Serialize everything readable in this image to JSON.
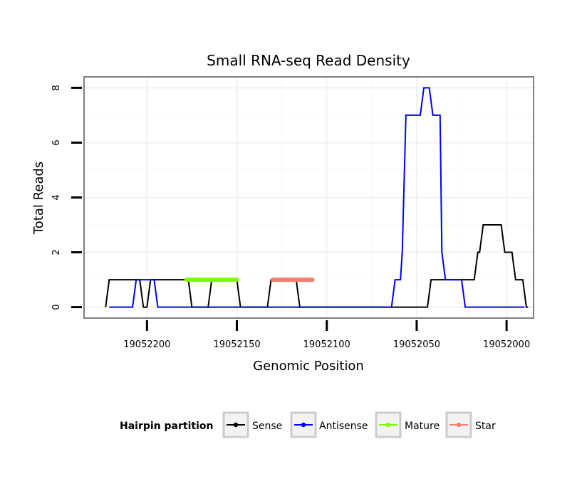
{
  "chart_data": {
    "type": "line",
    "title": "Small RNA-seq Read Density",
    "xlabel": "Genomic Position",
    "ylabel": "Total Reads",
    "x_reversed": true,
    "xlim": [
      19052235,
      19051985
    ],
    "ylim": [
      -0.4,
      8.4
    ],
    "x_ticks": [
      19052200,
      19052150,
      19052100,
      19052050,
      19052000
    ],
    "x_tick_labels": [
      "19052200",
      "19052150",
      "19052100",
      "19052050",
      "19052000"
    ],
    "y_ticks": [
      0,
      2,
      4,
      6,
      8
    ],
    "y_tick_labels": [
      "0",
      "2",
      "4",
      "6",
      "8"
    ],
    "legend": {
      "title": "Hairpin partition",
      "position": "bottom",
      "entries": [
        {
          "name": "Sense",
          "color": "#000000"
        },
        {
          "name": "Antisense",
          "color": "#0000ff"
        },
        {
          "name": "Mature",
          "color": "#7cfc00"
        },
        {
          "name": "Star",
          "color": "#f08070"
        }
      ]
    },
    "series": [
      {
        "name": "Sense",
        "color": "#000000",
        "x": [
          19052223,
          19052221,
          19052204,
          19052202,
          19052200,
          19052198,
          19052196,
          19052194,
          19052177,
          19052175,
          19052166,
          19052164,
          19052150,
          19052148,
          19052133,
          19052131,
          19052117,
          19052115,
          19052044,
          19052042,
          19052025,
          19052023,
          19052018,
          19052016,
          19052015,
          19052013,
          19052003,
          19052001,
          19051997,
          19051995,
          19051991,
          19051989,
          19051988
        ],
        "y": [
          0,
          1,
          1,
          0,
          0,
          1,
          1,
          1,
          1,
          0,
          0,
          1,
          1,
          0,
          0,
          1,
          1,
          0,
          0,
          1,
          1,
          1,
          1,
          2,
          2,
          3,
          3,
          2,
          2,
          1,
          1,
          0,
          0
        ]
      },
      {
        "name": "Antisense",
        "color": "#0000ff",
        "x": [
          19052221,
          19052208,
          19052206,
          19052196,
          19052194,
          19052064,
          19052062,
          19052059,
          19052058,
          19052056,
          19052048,
          19052046,
          19052043,
          19052041,
          19052037,
          19052036,
          19052034,
          19052025,
          19052023,
          19051990
        ],
        "y": [
          0,
          0,
          1,
          1,
          0,
          0,
          1,
          1,
          2,
          7,
          7,
          8,
          8,
          7,
          7,
          2,
          1,
          1,
          0,
          0
        ]
      },
      {
        "name": "Mature",
        "color": "#7cfc00",
        "x": [
          19052178,
          19052150
        ],
        "y": [
          1,
          1
        ]
      },
      {
        "name": "Star",
        "color": "#f08070",
        "x": [
          19052130,
          19052108
        ],
        "y": [
          1,
          1
        ]
      }
    ]
  }
}
